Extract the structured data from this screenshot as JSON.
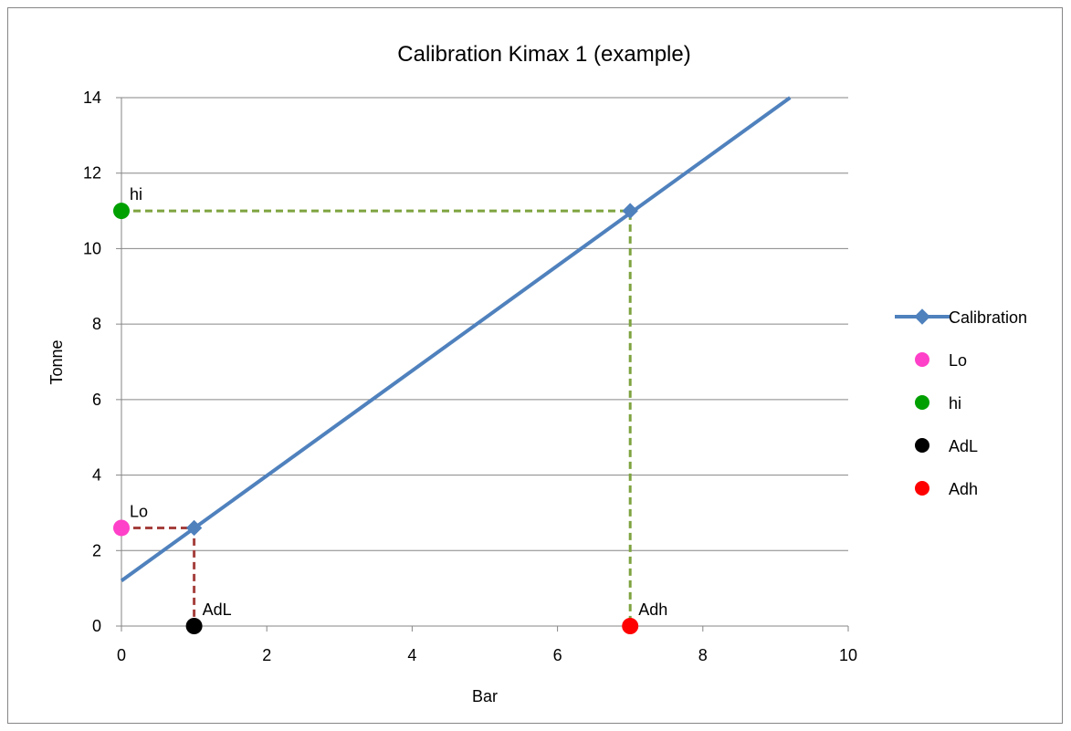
{
  "chart_data": {
    "type": "scatter",
    "title": "Calibration Kimax 1 (example)",
    "xlabel": "Bar",
    "ylabel": "Tonne",
    "xlim": [
      0,
      10
    ],
    "ylim": [
      0,
      14
    ],
    "x_ticks": [
      "0",
      "2",
      "4",
      "6",
      "8",
      "10"
    ],
    "y_ticks": [
      "0",
      "2",
      "4",
      "6",
      "8",
      "10",
      "12",
      "14"
    ],
    "grid": "horizontal",
    "legend_position": "right",
    "series": [
      {
        "name": "Calibration",
        "kind": "line",
        "color": "#4f81bd",
        "x": [
          0,
          9.2
        ],
        "y": [
          1.2,
          14.0
        ],
        "markers": [
          {
            "x": 1,
            "y": 2.6
          },
          {
            "x": 7,
            "y": 11
          }
        ]
      },
      {
        "name": "Lo",
        "kind": "point",
        "color": "#ff40c8",
        "x": [
          0
        ],
        "y": [
          2.6
        ],
        "label": "Lo"
      },
      {
        "name": "hi",
        "kind": "point",
        "color": "#00a000",
        "x": [
          0
        ],
        "y": [
          11
        ],
        "label": "hi"
      },
      {
        "name": "AdL",
        "kind": "point",
        "color": "#000000",
        "x": [
          1
        ],
        "y": [
          0
        ],
        "label": "AdL"
      },
      {
        "name": "Adh",
        "kind": "point",
        "color": "#ff0000",
        "x": [
          7
        ],
        "y": [
          0
        ],
        "label": "Adh"
      }
    ],
    "guides": [
      {
        "color": "#a5403d",
        "points": [
          [
            0,
            2.6
          ],
          [
            1,
            2.6
          ],
          [
            1,
            0
          ]
        ]
      },
      {
        "color": "#7ea33f",
        "points": [
          [
            0,
            11
          ],
          [
            7,
            11
          ],
          [
            7,
            0
          ]
        ]
      }
    ]
  }
}
